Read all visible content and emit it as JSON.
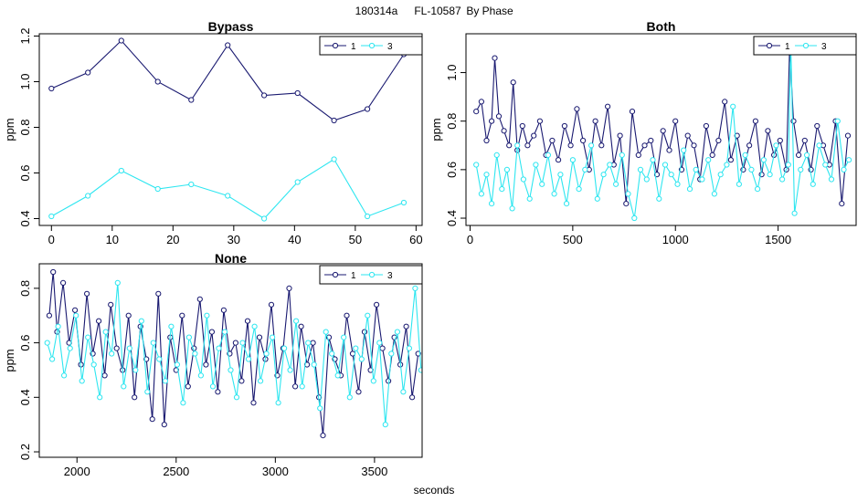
{
  "figure": {
    "title_id": "180314a",
    "title_unit": "FL-10587",
    "title_group": "By Phase",
    "xlabel": "seconds"
  },
  "colors": {
    "series_1": "#191970",
    "series_3": "#2ee6f0"
  },
  "chart_data": [
    {
      "type": "line",
      "title": "Bypass",
      "ylabel": "ppm",
      "xlim": [
        -2,
        61
      ],
      "ylim": [
        0.37,
        1.21
      ],
      "xticks": [
        "0",
        "10",
        "20",
        "30",
        "40",
        "50",
        "60"
      ],
      "yticks": [
        "0.4",
        "0.6",
        "0.8",
        "1.0",
        "1.2"
      ],
      "legend": [
        "1",
        "3"
      ],
      "legend_position": "top-right",
      "series": [
        {
          "name": "1",
          "x": [
            0,
            6,
            11.5,
            17.5,
            23,
            29,
            35,
            40.5,
            46.5,
            52,
            58
          ],
          "y": [
            0.97,
            1.04,
            1.18,
            1.0,
            0.92,
            1.16,
            0.94,
            0.95,
            0.83,
            0.88,
            1.12
          ]
        },
        {
          "name": "3",
          "x": [
            0,
            6,
            11.5,
            17.5,
            23,
            29,
            35,
            40.5,
            46.5,
            52,
            58
          ],
          "y": [
            0.41,
            0.5,
            0.61,
            0.53,
            0.55,
            0.5,
            0.4,
            0.56,
            0.66,
            0.41,
            0.47
          ]
        }
      ]
    },
    {
      "type": "line",
      "title": "Both",
      "ylabel": "ppm",
      "xlim": [
        -20,
        1880
      ],
      "ylim": [
        0.37,
        1.16
      ],
      "xticks": [
        "0",
        "500",
        "1000",
        "1500"
      ],
      "yticks": [
        "0.4",
        "0.6",
        "0.8",
        "1.0"
      ],
      "legend": [
        "1",
        "3"
      ],
      "legend_position": "top-right",
      "series": [
        {
          "name": "1",
          "x": [
            30,
            55,
            80,
            105,
            120,
            140,
            165,
            190,
            210,
            230,
            255,
            280,
            310,
            340,
            370,
            400,
            430,
            460,
            490,
            520,
            550,
            580,
            610,
            640,
            670,
            700,
            730,
            760,
            790,
            820,
            850,
            880,
            910,
            940,
            970,
            1000,
            1030,
            1060,
            1090,
            1120,
            1150,
            1180,
            1210,
            1240,
            1270,
            1300,
            1330,
            1360,
            1390,
            1420,
            1450,
            1480,
            1510,
            1540,
            1556,
            1575,
            1600,
            1630,
            1660,
            1690,
            1720,
            1750,
            1780,
            1810,
            1840
          ],
          "y": [
            0.84,
            0.88,
            0.72,
            0.8,
            1.06,
            0.82,
            0.76,
            0.7,
            0.96,
            0.68,
            0.78,
            0.7,
            0.74,
            0.8,
            0.66,
            0.72,
            0.64,
            0.78,
            0.7,
            0.85,
            0.72,
            0.6,
            0.8,
            0.7,
            0.86,
            0.62,
            0.74,
            0.46,
            0.84,
            0.66,
            0.7,
            0.72,
            0.58,
            0.76,
            0.68,
            0.8,
            0.6,
            0.74,
            0.7,
            0.56,
            0.78,
            0.66,
            0.72,
            0.88,
            0.64,
            0.74,
            0.6,
            0.7,
            0.8,
            0.58,
            0.76,
            0.66,
            0.72,
            0.6,
            1.1,
            0.8,
            0.66,
            0.72,
            0.6,
            0.78,
            0.7,
            0.62,
            0.8,
            0.46,
            0.74
          ]
        },
        {
          "name": "3",
          "x": [
            30,
            55,
            80,
            105,
            130,
            155,
            180,
            205,
            230,
            260,
            290,
            320,
            350,
            380,
            410,
            440,
            470,
            500,
            530,
            560,
            590,
            620,
            650,
            680,
            710,
            740,
            770,
            800,
            830,
            860,
            890,
            920,
            950,
            980,
            1010,
            1040,
            1070,
            1100,
            1130,
            1160,
            1190,
            1220,
            1250,
            1280,
            1310,
            1340,
            1370,
            1400,
            1430,
            1460,
            1490,
            1520,
            1550,
            1562,
            1580,
            1610,
            1640,
            1670,
            1700,
            1730,
            1760,
            1790,
            1820,
            1845
          ],
          "y": [
            0.62,
            0.5,
            0.58,
            0.46,
            0.66,
            0.52,
            0.6,
            0.44,
            0.7,
            0.56,
            0.48,
            0.62,
            0.54,
            0.66,
            0.5,
            0.58,
            0.46,
            0.64,
            0.52,
            0.6,
            0.7,
            0.48,
            0.58,
            0.62,
            0.54,
            0.66,
            0.5,
            0.4,
            0.6,
            0.56,
            0.64,
            0.48,
            0.62,
            0.58,
            0.54,
            0.68,
            0.52,
            0.6,
            0.56,
            0.64,
            0.5,
            0.58,
            0.62,
            0.86,
            0.54,
            0.66,
            0.6,
            0.52,
            0.64,
            0.58,
            0.7,
            0.56,
            0.62,
            1.12,
            0.42,
            0.6,
            0.66,
            0.54,
            0.7,
            0.62,
            0.56,
            0.8,
            0.6,
            0.64
          ]
        }
      ]
    },
    {
      "type": "line",
      "title": "None",
      "ylabel": "ppm",
      "xlim": [
        1810,
        3740
      ],
      "ylim": [
        0.18,
        0.89
      ],
      "xticks": [
        "2000",
        "2500",
        "3000",
        "3500"
      ],
      "yticks": [
        "0.2",
        "0.4",
        "0.6",
        "0.8"
      ],
      "legend": [
        "1",
        "3"
      ],
      "legend_position": "top-right",
      "series": [
        {
          "name": "1",
          "x": [
            1860,
            1880,
            1900,
            1930,
            1960,
            1990,
            2020,
            2050,
            2080,
            2110,
            2140,
            2170,
            2200,
            2230,
            2260,
            2290,
            2320,
            2350,
            2380,
            2410,
            2440,
            2470,
            2500,
            2530,
            2560,
            2590,
            2620,
            2650,
            2680,
            2710,
            2740,
            2770,
            2800,
            2830,
            2860,
            2890,
            2920,
            2950,
            2980,
            3010,
            3040,
            3070,
            3100,
            3130,
            3160,
            3190,
            3220,
            3240,
            3270,
            3300,
            3330,
            3360,
            3390,
            3420,
            3450,
            3480,
            3510,
            3540,
            3570,
            3600,
            3630,
            3660,
            3690,
            3720
          ],
          "y": [
            0.7,
            0.86,
            0.64,
            0.82,
            0.6,
            0.72,
            0.52,
            0.78,
            0.56,
            0.68,
            0.48,
            0.74,
            0.58,
            0.5,
            0.7,
            0.4,
            0.66,
            0.54,
            0.32,
            0.78,
            0.3,
            0.62,
            0.5,
            0.7,
            0.44,
            0.58,
            0.76,
            0.52,
            0.64,
            0.42,
            0.72,
            0.56,
            0.6,
            0.46,
            0.68,
            0.38,
            0.62,
            0.54,
            0.74,
            0.48,
            0.58,
            0.8,
            0.44,
            0.66,
            0.52,
            0.6,
            0.4,
            0.26,
            0.62,
            0.54,
            0.48,
            0.7,
            0.56,
            0.42,
            0.64,
            0.5,
            0.74,
            0.58,
            0.46,
            0.62,
            0.52,
            0.66,
            0.4,
            0.56
          ]
        },
        {
          "name": "3",
          "x": [
            1850,
            1875,
            1905,
            1935,
            1965,
            1995,
            2025,
            2055,
            2085,
            2115,
            2145,
            2175,
            2205,
            2235,
            2265,
            2295,
            2325,
            2355,
            2385,
            2415,
            2445,
            2475,
            2505,
            2535,
            2565,
            2595,
            2625,
            2655,
            2685,
            2715,
            2745,
            2775,
            2805,
            2835,
            2865,
            2895,
            2925,
            2955,
            2985,
            3015,
            3045,
            3075,
            3105,
            3135,
            3165,
            3195,
            3225,
            3255,
            3285,
            3315,
            3345,
            3375,
            3405,
            3435,
            3465,
            3495,
            3525,
            3555,
            3585,
            3615,
            3645,
            3675,
            3705,
            3735
          ],
          "y": [
            0.6,
            0.54,
            0.66,
            0.48,
            0.58,
            0.7,
            0.46,
            0.62,
            0.52,
            0.4,
            0.64,
            0.56,
            0.82,
            0.44,
            0.58,
            0.5,
            0.68,
            0.42,
            0.6,
            0.54,
            0.46,
            0.66,
            0.52,
            0.38,
            0.62,
            0.56,
            0.48,
            0.7,
            0.44,
            0.58,
            0.64,
            0.5,
            0.4,
            0.6,
            0.54,
            0.66,
            0.46,
            0.56,
            0.62,
            0.38,
            0.58,
            0.5,
            0.68,
            0.44,
            0.6,
            0.52,
            0.36,
            0.64,
            0.56,
            0.48,
            0.62,
            0.4,
            0.58,
            0.54,
            0.7,
            0.46,
            0.6,
            0.3,
            0.56,
            0.64,
            0.42,
            0.58,
            0.8,
            0.5
          ]
        }
      ]
    }
  ]
}
